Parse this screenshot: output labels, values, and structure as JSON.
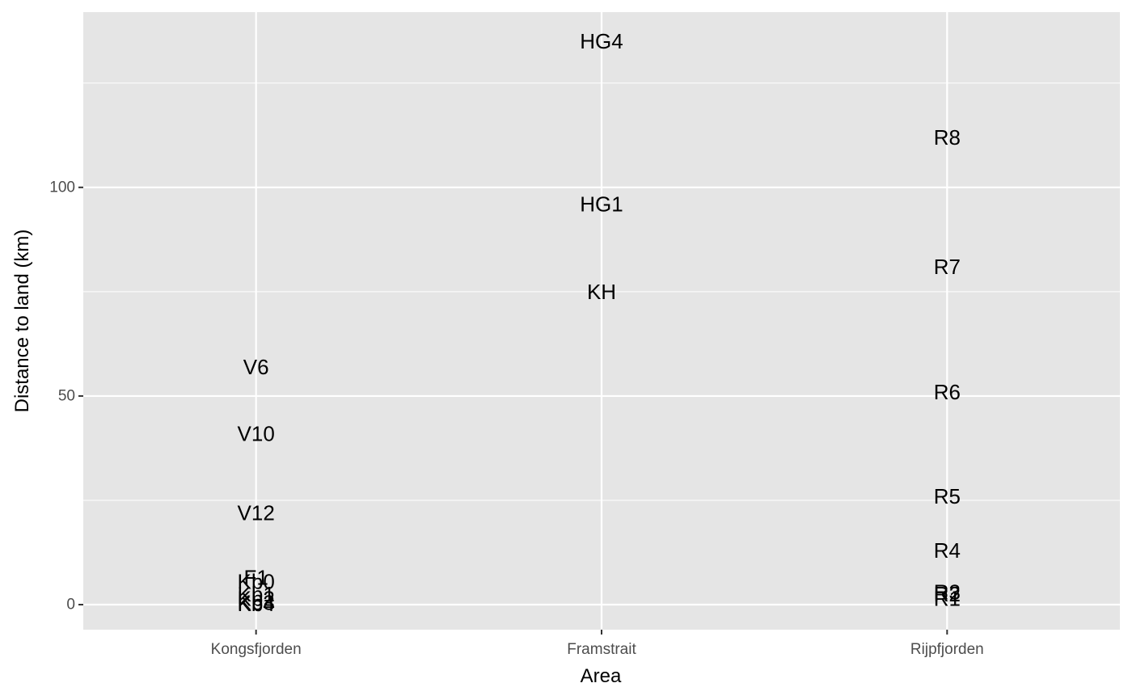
{
  "chart_data": {
    "type": "scatter",
    "title": "",
    "xlabel": "Area",
    "ylabel": "Distance to land (km)",
    "categories": [
      "Kongsfjorden",
      "Framstrait",
      "Rijpfjorden"
    ],
    "ylim": [
      -6,
      142
    ],
    "y_ticks": [
      0,
      50,
      100
    ],
    "y_minor": [
      25,
      75,
      125
    ],
    "grid": true,
    "legend": "none",
    "panel_background": "#e5e5e5",
    "grid_color": "#ffffff",
    "text_color": "#000000",
    "points": [
      {
        "label": "HG4",
        "category": "Framstrait",
        "y": 135
      },
      {
        "label": "HG1",
        "category": "Framstrait",
        "y": 96
      },
      {
        "label": "KH",
        "category": "Framstrait",
        "y": 75
      },
      {
        "label": "R8",
        "category": "Rijpfjorden",
        "y": 112
      },
      {
        "label": "R7",
        "category": "Rijpfjorden",
        "y": 81
      },
      {
        "label": "R6",
        "category": "Rijpfjorden",
        "y": 51
      },
      {
        "label": "R5",
        "category": "Rijpfjorden",
        "y": 26
      },
      {
        "label": "R4",
        "category": "Rijpfjorden",
        "y": 13
      },
      {
        "label": "R3",
        "category": "Rijpfjorden",
        "y": 3
      },
      {
        "label": "R2",
        "category": "Rijpfjorden",
        "y": 2.5
      },
      {
        "label": "R1",
        "category": "Rijpfjorden",
        "y": 1.5
      },
      {
        "label": "V6",
        "category": "Kongsfjorden",
        "y": 57
      },
      {
        "label": "V10",
        "category": "Kongsfjorden",
        "y": 41
      },
      {
        "label": "V12",
        "category": "Kongsfjorden",
        "y": 22
      },
      {
        "label": "F1",
        "category": "Kongsfjorden",
        "y": 6.5
      },
      {
        "label": "Kb0",
        "category": "Kongsfjorden",
        "y": 5.5
      },
      {
        "label": "Kb1",
        "category": "Kongsfjorden",
        "y": 2.5
      },
      {
        "label": "Kb2",
        "category": "Kongsfjorden",
        "y": 1.5
      },
      {
        "label": "Kb3",
        "category": "Kongsfjorden",
        "y": 0.5
      },
      {
        "label": "Kb4",
        "category": "Kongsfjorden",
        "y": 0.2
      }
    ]
  }
}
